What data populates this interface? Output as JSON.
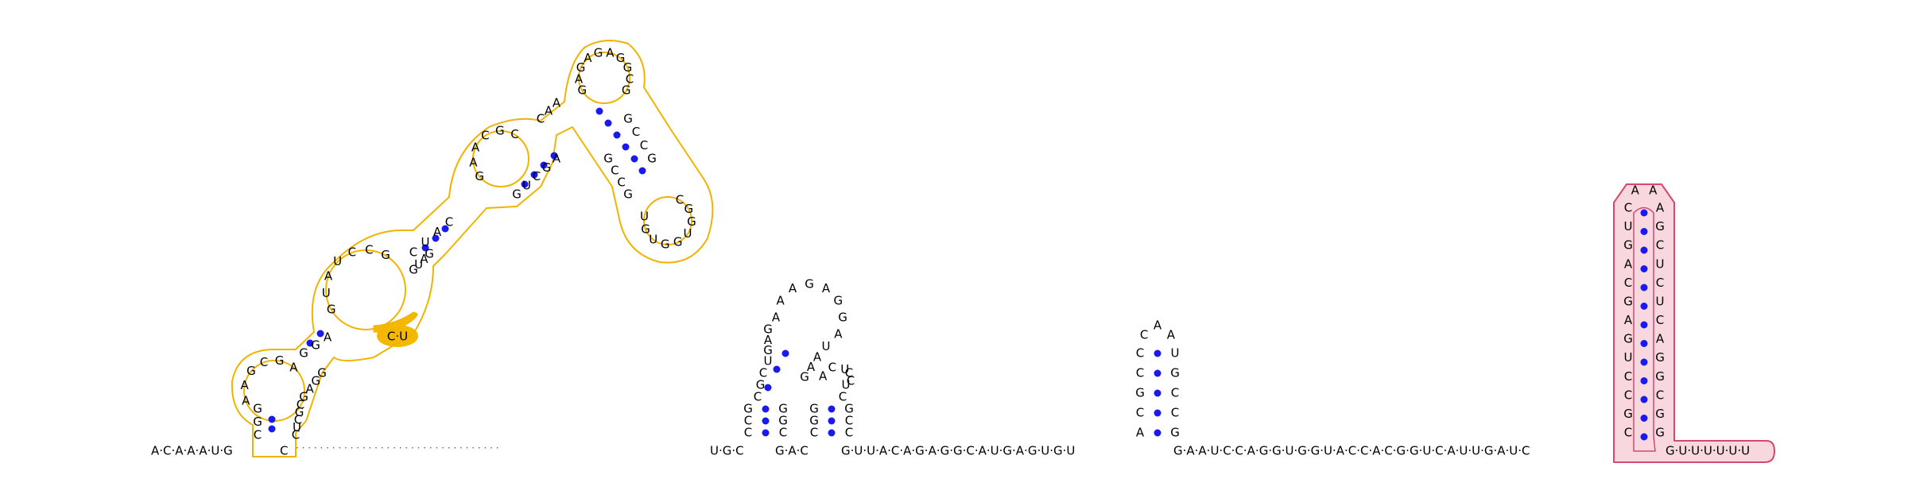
{
  "sequence": "ACAAAUGGCAGAAGAGGCAGUAUCCGCUAACGAAACGCCAAGAGAGAGGCGGCCGCGGUGGUGUGCCGAGCUGGAUGGGAGCGCUCUUUGCUGUGGGGCGAAACGAAAGGUUAUCGCCUUCCACCGUUGGAGUCAGAGGAGGUGGGGUAGACCGGUGCGAGCCCCAUUGGAGCAUGAGUGCGCCUGGUUAACGCGCGCGCAGGACGAGACGGCAGGACGGGGAAGGGGCACCCUGGGUUUUUUU",
  "colors": {
    "structure_outline": "#f0b400",
    "structure_fill": "#ffffff",
    "highlight_fill": "#f5b800",
    "terminator_outline": "#d24a6e",
    "terminator_fill": "#f8d7de",
    "pair_dot": "#1a1aee",
    "text": "#000000"
  },
  "linker": "· · · · · · · · · · · · · · · · · · · · · · · · · · · · · · · · · ·",
  "backbone": {
    "start": "A·C·A·A·A·U·G",
    "after_first": "C",
    "mid_a": "U·G·C",
    "mid_b": "G·A·C",
    "mid_c": "G·U·U·A·C·A·G·A·G·G·C·A·U·G·A·G·U·G·U",
    "mid_d": "G·A·A·U·C·C·A·G·G·U·G·G·U·A·C·C·A·C·G·G·U·C·A·U·U·G·A·U·C",
    "end": "G·U·U·U·U·U·U"
  },
  "hairpin_small": {
    "left": [
      "C",
      "C",
      "G",
      "C",
      "A"
    ],
    "loop": [
      "C",
      "A",
      "A"
    ],
    "right": [
      "U",
      "G",
      "C",
      "C",
      "G"
    ]
  },
  "terminator": {
    "left": [
      "C",
      "U",
      "G",
      "A",
      "C",
      "G",
      "A",
      "G",
      "U",
      "C",
      "C",
      "G",
      "C"
    ],
    "loop": [
      "A",
      "A"
    ],
    "right": [
      "A",
      "G",
      "C",
      "U",
      "C",
      "U",
      "C",
      "A",
      "G",
      "G",
      "C",
      "G",
      "G"
    ]
  },
  "multiloop": {
    "stem1_left": [
      "C",
      "C",
      "G"
    ],
    "stem1_right": [
      "C",
      "G",
      "G"
    ],
    "loop_left": [
      "C",
      "G",
      "G",
      "A",
      "G",
      "U"
    ],
    "loop_top": [
      "A",
      "A",
      "A",
      "G",
      "A",
      "G",
      "G"
    ],
    "loop_right": [
      "A",
      "U"
    ],
    "inner_stem_left": [
      "G",
      "A",
      "A"
    ],
    "inner_stem_right": [
      "C",
      "U",
      "C"
    ],
    "inner_loop": [
      "A",
      "C",
      "U",
      "C"
    ]
  },
  "big_domain": {
    "labels": [
      "C",
      "G",
      "G",
      "A",
      "A",
      "G",
      "C",
      "G",
      "A",
      "G",
      "G",
      "A",
      "G",
      "U",
      "A",
      "U",
      "C",
      "C",
      "G",
      "C",
      "U",
      "A",
      "C",
      "G",
      "A",
      "A",
      "C",
      "G",
      "C",
      "C",
      "A",
      "A",
      "G",
      "A",
      "G",
      "A",
      "G",
      "A",
      "G",
      "G",
      "C",
      "G",
      "G",
      "C",
      "C",
      "G",
      "C",
      "G",
      "G",
      "U",
      "G",
      "G",
      "U",
      "G",
      "U",
      "G",
      "C",
      "C",
      "G",
      "A",
      "G",
      "C",
      "U",
      "G",
      "G",
      "A",
      "U",
      "G",
      "G",
      "G",
      "A",
      "G",
      "C",
      "G",
      "C",
      "U",
      "C",
      "U",
      "U",
      "U",
      "G",
      "C",
      "U",
      "G",
      "U",
      "G",
      "G"
    ],
    "highlight_text": "C·U"
  }
}
